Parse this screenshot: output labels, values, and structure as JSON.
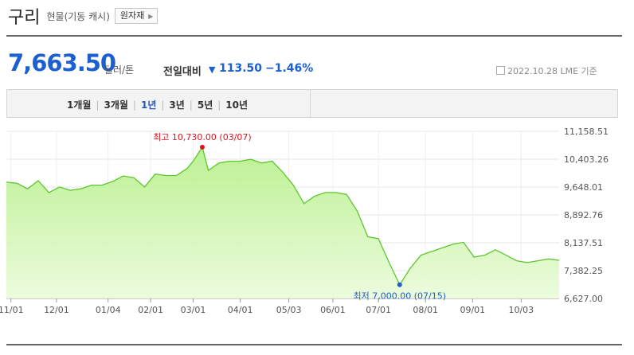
{
  "header": {
    "title": "구리",
    "subtitle": "현물(기동 캐시)",
    "raw_button": "원자재"
  },
  "price": {
    "value": "7,663.50",
    "unit": "달러/톤",
    "change_label": "전일대비",
    "change_direction": "down",
    "change_value": "113.50",
    "change_percent": "−1.46%",
    "date_note": "2022.10.28 LME 기준"
  },
  "periods": {
    "items": [
      "1개월",
      "3개월",
      "1년",
      "3년",
      "5년",
      "10년"
    ],
    "active": "1년"
  },
  "colors": {
    "price_blue": "#1b5fd1",
    "line_green": "#5cc72e",
    "fill_green": "#b8f08c",
    "high_red": "#e0141e",
    "low_blue": "#1b5fd1"
  },
  "chart_data": {
    "type": "area",
    "ylim": [
      6627,
      11158.51
    ],
    "y_ticks": [
      "11,158.51",
      "10,403.26",
      "9,648.01",
      "8,892.76",
      "8,137.51",
      "7,382.25",
      "6,627.00"
    ],
    "x_ticks": [
      "11/01",
      "12/01",
      "01/04",
      "02/01",
      "03/01",
      "04/01",
      "05/03",
      "06/01",
      "07/01",
      "08/01",
      "09/01",
      "10/03"
    ],
    "grid": true,
    "high": {
      "label": "최고 10,730.00 (03/07)",
      "date": "2022-03-07",
      "value": 10730
    },
    "low": {
      "label": "최저 7,000.00 (07/15)",
      "date": "2022-07-15",
      "value": 7000
    },
    "series": [
      {
        "x": [
          "2021-10-29",
          "2021-11-05",
          "2021-11-12",
          "2021-11-19",
          "2021-11-26",
          "2021-12-03",
          "2021-12-10",
          "2021-12-17",
          "2021-12-24",
          "2021-12-31",
          "2022-01-07",
          "2022-01-14",
          "2022-01-21",
          "2022-01-28",
          "2022-02-04",
          "2022-02-11",
          "2022-02-18",
          "2022-02-25",
          "2022-03-01",
          "2022-03-07",
          "2022-03-11",
          "2022-03-18",
          "2022-03-25",
          "2022-04-01",
          "2022-04-08",
          "2022-04-15",
          "2022-04-22",
          "2022-04-29",
          "2022-05-06",
          "2022-05-13",
          "2022-05-20",
          "2022-05-27",
          "2022-06-03",
          "2022-06-10",
          "2022-06-17",
          "2022-06-24",
          "2022-07-01",
          "2022-07-08",
          "2022-07-15",
          "2022-07-22",
          "2022-07-29",
          "2022-08-05",
          "2022-08-12",
          "2022-08-19",
          "2022-08-26",
          "2022-09-02",
          "2022-09-09",
          "2022-09-16",
          "2022-09-23",
          "2022-09-30",
          "2022-10-07",
          "2022-10-14",
          "2022-10-21",
          "2022-10-28"
        ],
        "values": [
          9780,
          9750,
          9600,
          9820,
          9500,
          9650,
          9560,
          9600,
          9700,
          9700,
          9800,
          9950,
          9900,
          9650,
          10000,
          9960,
          9960,
          10150,
          10350,
          10730,
          10100,
          10300,
          10350,
          10350,
          10400,
          10300,
          10350,
          10050,
          9700,
          9200,
          9400,
          9500,
          9500,
          9450,
          9000,
          8300,
          8250,
          7600,
          7000,
          7450,
          7800,
          7900,
          8000,
          8100,
          8150,
          7750,
          7800,
          7950,
          7800,
          7650,
          7600,
          7650,
          7700,
          7663.5
        ]
      }
    ]
  }
}
